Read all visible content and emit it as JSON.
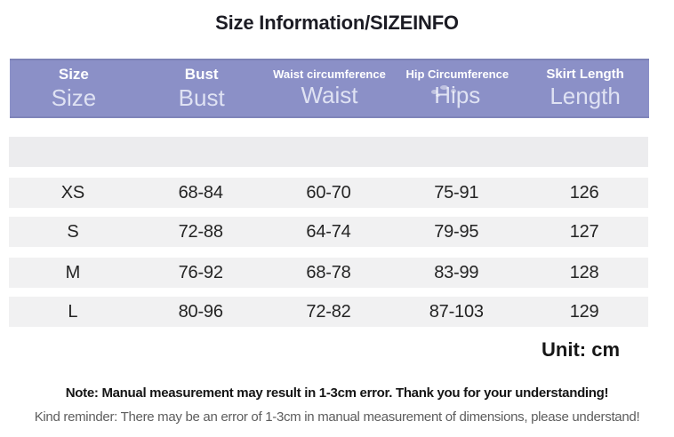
{
  "title": "Size Information/SIZEINFO",
  "table": {
    "columns": [
      {
        "label_top": "Size",
        "label_main": "Size"
      },
      {
        "label_top": "Bust",
        "label_main": "Bust"
      },
      {
        "label_top": "Waist circumference",
        "label_main": "Waist"
      },
      {
        "label_top": "Hip Circumference",
        "label_main": "Hips"
      },
      {
        "label_top": "Skirt Length",
        "label_main": "Length"
      }
    ],
    "rows": [
      [
        "XS",
        "68-84",
        "60-70",
        "75-91",
        "126"
      ],
      [
        "S",
        "72-88",
        "64-74",
        "79-95",
        "127"
      ],
      [
        "M",
        "76-92",
        "68-78",
        "83-99",
        "128"
      ],
      [
        "L",
        "80-96",
        "72-82",
        "87-103",
        "129"
      ]
    ]
  },
  "unit_label": "Unit: cm",
  "note": "Note: Manual measurement may result in 1-3cm error. Thank you for your understanding!",
  "kind_reminder": "Kind reminder: There may be an error of 1-3cm in manual measurement of dimensions, please understand!",
  "colors": {
    "header_bg": "#8b90c7",
    "header_text": "#ffffff",
    "header_subtext": "#dfe2f3",
    "row_bg": "#f1f1f2",
    "empty_row_bg": "#ececee"
  }
}
